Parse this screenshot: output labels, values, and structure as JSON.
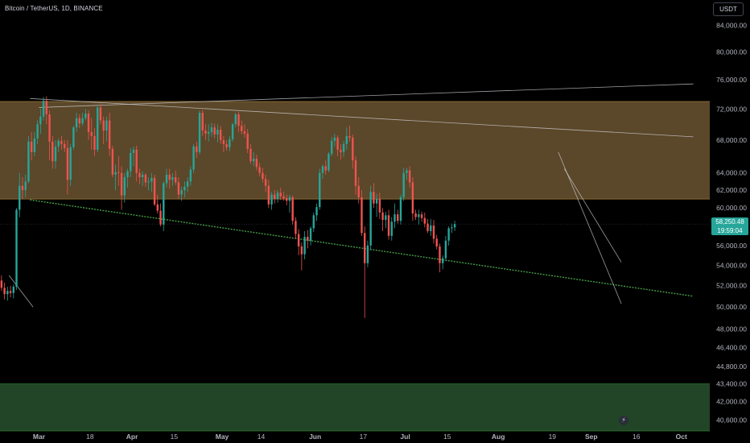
{
  "header": {
    "symbol": "Bitcoin / TetherUS, 1D, BINANCE",
    "currency_button": "USDT"
  },
  "colors": {
    "background": "#000000",
    "up_candle": "#26a69a",
    "down_candle": "#ef5350",
    "resistance_zone": "#6b5330",
    "support_zone": "#254d2a",
    "support_line": "#4caf50",
    "axis_text": "#b2b5be",
    "price_label_bg": "#26a69a"
  },
  "icons": {
    "flash": "lightning-bolt-icon"
  },
  "chart_data": {
    "type": "candlestick",
    "title": "Bitcoin / TetherUS, 1D, BINANCE",
    "y_axis": {
      "scale": "log",
      "ticks": [
        "84,000.00",
        "80,000.00",
        "76,000.00",
        "72,000.00",
        "68,000.00",
        "64,000.00",
        "62,000.00",
        "60,000.00",
        "56,000.00",
        "54,000.00",
        "52,000.00",
        "50,000.00",
        "48,000.00",
        "46,400.00",
        "44,800.00",
        "43,400.00",
        "42,000.00",
        "40,600.00"
      ],
      "range": [
        39800,
        88000
      ]
    },
    "x_axis": {
      "ticks": [
        {
          "label": "Mar",
          "date": "2024-03-01"
        },
        {
          "label": "18",
          "date": "2024-03-18"
        },
        {
          "label": "Apr",
          "date": "2024-04-01"
        },
        {
          "label": "15",
          "date": "2024-04-15"
        },
        {
          "label": "May",
          "date": "2024-05-01"
        },
        {
          "label": "14",
          "date": "2024-05-14"
        },
        {
          "label": "Jun",
          "date": "2024-06-01"
        },
        {
          "label": "17",
          "date": "2024-06-17"
        },
        {
          "label": "Jul",
          "date": "2024-07-01"
        },
        {
          "label": "15",
          "date": "2024-07-15"
        },
        {
          "label": "Aug",
          "date": "2024-08-01"
        },
        {
          "label": "19",
          "date": "2024-08-19"
        },
        {
          "label": "Sep",
          "date": "2024-09-01"
        },
        {
          "label": "16",
          "date": "2024-09-16"
        },
        {
          "label": "Oct",
          "date": "2024-10-01"
        }
      ]
    },
    "last_price": {
      "value": "58,250.48",
      "countdown": "19:59:04",
      "numeric": 58250.48
    },
    "zones": [
      {
        "name": "resistance",
        "low": 61000,
        "high": 73000
      },
      {
        "name": "support",
        "low": 39800,
        "high": 43400
      }
    ],
    "trendlines": [
      {
        "start": [
          "2024-02-27",
          60900
        ],
        "end": [
          "2024-10-05",
          51000
        ]
      },
      {
        "start": [
          "2024-02-27",
          73400
        ],
        "end": [
          "2024-10-05",
          68400
        ]
      },
      {
        "start": [
          "2024-03-01",
          72200
        ],
        "end": [
          "2024-10-05",
          75400
        ]
      },
      {
        "start": [
          "2024-08-21",
          66500
        ],
        "end": [
          "2024-09-11",
          50300
        ]
      },
      {
        "start": [
          "2024-08-23",
          64500
        ],
        "end": [
          "2024-09-11",
          54300
        ]
      },
      {
        "start": [
          "2024-02-20",
          53000
        ],
        "end": [
          "2024-02-28",
          50000
        ]
      }
    ],
    "candles": [
      [
        52500,
        53000,
        51500,
        51800
      ],
      [
        51800,
        52300,
        50700,
        51200
      ],
      [
        51200,
        51900,
        50600,
        51500
      ],
      [
        51500,
        52000,
        50900,
        51300
      ],
      [
        51300,
        52100,
        50800,
        51900
      ],
      [
        51900,
        60000,
        51600,
        59800
      ],
      [
        59800,
        64000,
        59000,
        62500
      ],
      [
        62500,
        63500,
        61000,
        62000
      ],
      [
        62000,
        63800,
        61200,
        63000
      ],
      [
        63000,
        68500,
        62800,
        67800
      ],
      [
        67800,
        69000,
        65500,
        66500
      ],
      [
        66500,
        69000,
        66000,
        68200
      ],
      [
        68200,
        70500,
        67500,
        70000
      ],
      [
        70000,
        72000,
        68800,
        71000
      ],
      [
        71000,
        73600,
        70500,
        73100
      ],
      [
        73100,
        73700,
        70000,
        71300
      ],
      [
        71300,
        71800,
        65500,
        67800
      ],
      [
        67800,
        68500,
        64500,
        65400
      ],
      [
        65400,
        68000,
        64500,
        67200
      ],
      [
        67200,
        68200,
        66500,
        67900
      ],
      [
        67900,
        68500,
        66800,
        67500
      ],
      [
        67500,
        68000,
        66500,
        67000
      ],
      [
        67000,
        68000,
        61500,
        63200
      ],
      [
        63200,
        67500,
        62500,
        67100
      ],
      [
        67100,
        69800,
        66800,
        69600
      ],
      [
        69600,
        71500,
        69000,
        70800
      ],
      [
        70800,
        71300,
        69500,
        70100
      ],
      [
        70100,
        71500,
        69800,
        70800
      ],
      [
        70800,
        72000,
        70500,
        71400
      ],
      [
        71400,
        71800,
        68000,
        69000
      ],
      [
        69000,
        70800,
        66800,
        68500
      ],
      [
        68500,
        69500,
        66000,
        66800
      ],
      [
        66800,
        72500,
        66500,
        72200
      ],
      [
        72200,
        72600,
        70000,
        70500
      ],
      [
        70500,
        71000,
        67500,
        69200
      ],
      [
        69200,
        71000,
        67800,
        70500
      ],
      [
        70500,
        71500,
        66000,
        66900
      ],
      [
        66900,
        67300,
        63500,
        63800
      ],
      [
        63800,
        65000,
        62000,
        64100
      ],
      [
        64100,
        66000,
        62500,
        64000
      ],
      [
        64000,
        64800,
        59800,
        61400
      ],
      [
        61400,
        64000,
        60600,
        63500
      ],
      [
        63500,
        64500,
        62300,
        64200
      ],
      [
        64200,
        67000,
        63500,
        66400
      ],
      [
        66400,
        67200,
        64800,
        66800
      ],
      [
        66800,
        67300,
        63000,
        64000
      ],
      [
        64000,
        64500,
        62700,
        63500
      ],
      [
        63500,
        64200,
        62500,
        63800
      ],
      [
        63800,
        64000,
        62400,
        62900
      ],
      [
        62900,
        63500,
        62000,
        63000
      ],
      [
        63000,
        64000,
        61800,
        63400
      ],
      [
        63400,
        63800,
        60200,
        60400
      ],
      [
        60400,
        61500,
        59400,
        59700
      ],
      [
        59700,
        60500,
        58000,
        58200
      ],
      [
        58200,
        63000,
        57500,
        62800
      ],
      [
        62800,
        64500,
        62300,
        63800
      ],
      [
        63800,
        64500,
        62200,
        63200
      ],
      [
        63200,
        64000,
        62500,
        63500
      ],
      [
        63500,
        64300,
        62600,
        62900
      ],
      [
        62900,
        63500,
        61000,
        61500
      ],
      [
        61500,
        62400,
        60800,
        62000
      ],
      [
        62000,
        63000,
        61200,
        62400
      ],
      [
        62400,
        63500,
        61800,
        63000
      ],
      [
        63000,
        64800,
        62500,
        64400
      ],
      [
        64400,
        67500,
        64000,
        67200
      ],
      [
        67200,
        67800,
        65800,
        66500
      ],
      [
        66500,
        71800,
        66200,
        71500
      ],
      [
        71500,
        71900,
        68500,
        69200
      ],
      [
        69200,
        70000,
        68000,
        68800
      ],
      [
        68800,
        70000,
        67800,
        69000
      ],
      [
        69000,
        70200,
        68400,
        69600
      ],
      [
        69600,
        70100,
        68200,
        68700
      ],
      [
        68700,
        70000,
        67700,
        69300
      ],
      [
        69300,
        69800,
        67500,
        68000
      ],
      [
        68000,
        68500,
        66500,
        67500
      ],
      [
        67500,
        68000,
        66700,
        67100
      ],
      [
        67100,
        68500,
        66600,
        68100
      ],
      [
        68100,
        70200,
        67800,
        70000
      ],
      [
        70000,
        71500,
        69600,
        71300
      ],
      [
        71300,
        71600,
        69000,
        69800
      ],
      [
        69800,
        70500,
        68700,
        69100
      ],
      [
        69100,
        70000,
        68300,
        68800
      ],
      [
        68800,
        69400,
        66400,
        66900
      ],
      [
        66900,
        67500,
        65100,
        65400
      ],
      [
        65400,
        66500,
        64800,
        65700
      ],
      [
        65700,
        66200,
        64300,
        64700
      ],
      [
        64700,
        65200,
        63600,
        64000
      ],
      [
        64000,
        64600,
        62900,
        63300
      ],
      [
        63300,
        63800,
        61800,
        62500
      ],
      [
        62500,
        63200,
        60000,
        60400
      ],
      [
        60400,
        61800,
        59800,
        61500
      ],
      [
        61500,
        62000,
        60500,
        61000
      ],
      [
        61000,
        62000,
        60600,
        61700
      ],
      [
        61700,
        62300,
        60900,
        61300
      ],
      [
        61300,
        61800,
        60800,
        61100
      ],
      [
        61100,
        61500,
        60300,
        60800
      ],
      [
        60800,
        61500,
        59500,
        61200
      ],
      [
        61200,
        61400,
        58200,
        58600
      ],
      [
        58600,
        59000,
        56700,
        57200
      ],
      [
        57200,
        57700,
        55000,
        55900
      ],
      [
        55900,
        56300,
        53500,
        55100
      ],
      [
        55100,
        57500,
        54600,
        56900
      ],
      [
        56900,
        57600,
        55700,
        56500
      ],
      [
        56500,
        58000,
        56000,
        57800
      ],
      [
        57800,
        59500,
        57400,
        59200
      ],
      [
        59200,
        60500,
        58600,
        60100
      ],
      [
        60100,
        64500,
        59800,
        64000
      ],
      [
        64000,
        65000,
        63300,
        64800
      ],
      [
        64800,
        65500,
        63800,
        64300
      ],
      [
        64300,
        66500,
        64100,
        66300
      ],
      [
        66300,
        68400,
        66000,
        67900
      ],
      [
        67900,
        68800,
        67200,
        68300
      ],
      [
        68300,
        68600,
        66000,
        66800
      ],
      [
        66800,
        67500,
        65600,
        66500
      ],
      [
        66500,
        67900,
        65900,
        67500
      ],
      [
        67500,
        69600,
        66800,
        68500
      ],
      [
        68500,
        69800,
        67800,
        68300
      ],
      [
        68300,
        68700,
        64500,
        65500
      ],
      [
        65500,
        66000,
        61500,
        62500
      ],
      [
        62500,
        63500,
        60500,
        61200
      ],
      [
        61200,
        62000,
        57000,
        57300
      ],
      [
        57300,
        58000,
        49000,
        54200
      ],
      [
        54200,
        56500,
        53800,
        56000
      ],
      [
        56000,
        62500,
        55500,
        61800
      ],
      [
        61800,
        62800,
        60000,
        60500
      ],
      [
        60500,
        61600,
        59000,
        61000
      ],
      [
        61000,
        61700,
        58800,
        59500
      ],
      [
        59500,
        60000,
        57500,
        58700
      ],
      [
        58700,
        59600,
        57800,
        59200
      ],
      [
        59200,
        59800,
        56600,
        57000
      ],
      [
        57000,
        59000,
        56500,
        58500
      ],
      [
        58500,
        60500,
        57800,
        59300
      ],
      [
        59300,
        59800,
        58300,
        58600
      ],
      [
        58600,
        61500,
        58200,
        61200
      ],
      [
        61200,
        64600,
        60800,
        64000
      ],
      [
        64000,
        64600,
        63200,
        64300
      ],
      [
        64300,
        64800,
        62300,
        62900
      ],
      [
        62900,
        63500,
        58600,
        59400
      ],
      [
        59400,
        59800,
        58700,
        59000
      ],
      [
        59000,
        59800,
        58200,
        59300
      ],
      [
        59300,
        59600,
        58500,
        58900
      ],
      [
        58900,
        59500,
        57900,
        58300
      ],
      [
        58300,
        58800,
        57300,
        57500
      ],
      [
        57500,
        58800,
        57000,
        58100
      ],
      [
        58100,
        58700,
        56200,
        56700
      ],
      [
        56700,
        57100,
        55600,
        55900
      ],
      [
        55900,
        56200,
        53300,
        54200
      ],
      [
        54200,
        55000,
        53600,
        54700
      ],
      [
        54700,
        57000,
        54400,
        56500
      ],
      [
        56500,
        58000,
        56000,
        57800
      ],
      [
        57800,
        58300,
        57300,
        57900
      ],
      [
        57900,
        58600,
        57500,
        58250
      ]
    ]
  }
}
